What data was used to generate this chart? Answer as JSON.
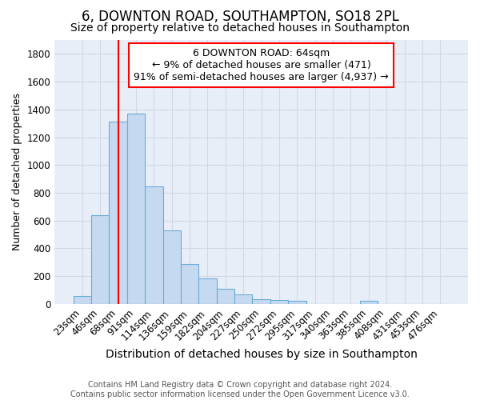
{
  "title1": "6, DOWNTON ROAD, SOUTHAMPTON, SO18 2PL",
  "title2": "Size of property relative to detached houses in Southampton",
  "xlabel": "Distribution of detached houses by size in Southampton",
  "ylabel": "Number of detached properties",
  "categories": [
    "23sqm",
    "46sqm",
    "68sqm",
    "91sqm",
    "114sqm",
    "136sqm",
    "159sqm",
    "182sqm",
    "204sqm",
    "227sqm",
    "250sqm",
    "272sqm",
    "295sqm",
    "317sqm",
    "340sqm",
    "363sqm",
    "385sqm",
    "408sqm",
    "431sqm",
    "453sqm",
    "476sqm"
  ],
  "values": [
    55,
    640,
    1310,
    1370,
    845,
    530,
    285,
    185,
    110,
    70,
    35,
    30,
    25,
    0,
    0,
    0,
    20,
    0,
    0,
    0,
    0
  ],
  "bar_color": "#c5d9f0",
  "bar_edge_color": "#6aacd4",
  "bar_edge_width": 0.8,
  "red_line_x": 2.0,
  "ylim": [
    0,
    1900
  ],
  "yticks": [
    0,
    200,
    400,
    600,
    800,
    1000,
    1200,
    1400,
    1600,
    1800
  ],
  "annotation_box_text": "6 DOWNTON ROAD: 64sqm\n← 9% of detached houses are smaller (471)\n91% of semi-detached houses are larger (4,937) →",
  "fig_bg_color": "#ffffff",
  "plot_bg_color": "#e8eef8",
  "grid_color": "#d0d8e8",
  "footnote": "Contains HM Land Registry data © Crown copyright and database right 2024.\nContains public sector information licensed under the Open Government Licence v3.0.",
  "title1_fontsize": 12,
  "title2_fontsize": 10,
  "xlabel_fontsize": 10,
  "ylabel_fontsize": 9,
  "tick_fontsize": 8.5,
  "annot_fontsize": 9,
  "footnote_fontsize": 7
}
